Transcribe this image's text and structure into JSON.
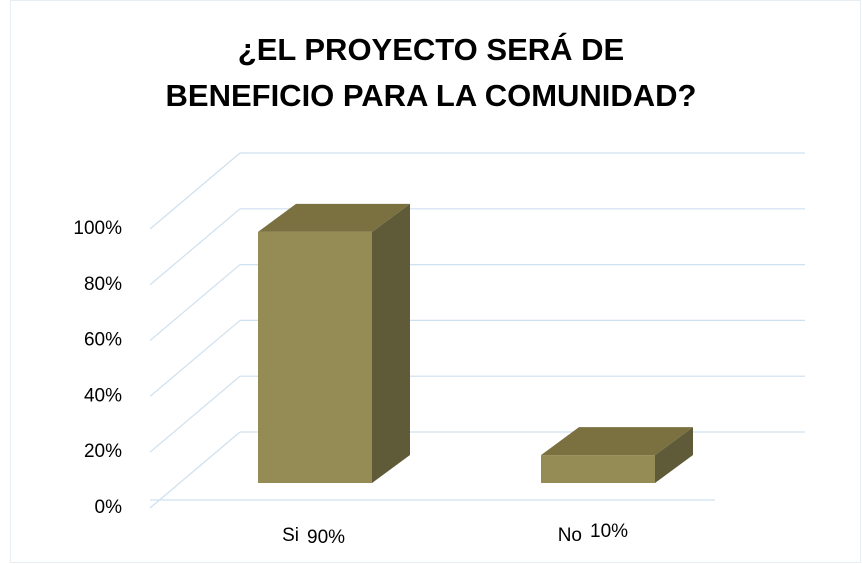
{
  "chart_data": {
    "type": "bar3d",
    "title": "¿EL PROYECTO SERÁ DE BENEFICIO PARA LA COMUNIDAD?",
    "categories": [
      "Si",
      "No"
    ],
    "values": [
      90,
      10
    ],
    "value_labels": [
      "90%",
      "10%"
    ],
    "color": "#958b54",
    "ylim": [
      0,
      100
    ],
    "yticks": [
      {
        "value": 0,
        "label": "0%"
      },
      {
        "value": 20,
        "label": "20%"
      },
      {
        "value": 40,
        "label": "40%"
      },
      {
        "value": 60,
        "label": "60%"
      },
      {
        "value": 80,
        "label": "80%"
      },
      {
        "value": 100,
        "label": "100%"
      }
    ],
    "grid": true
  }
}
